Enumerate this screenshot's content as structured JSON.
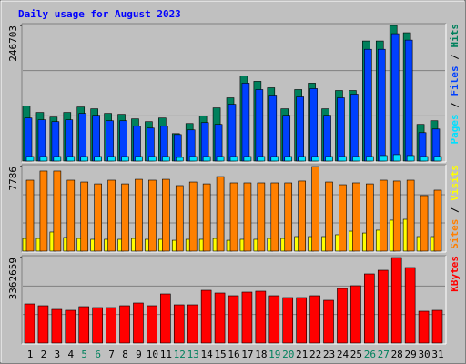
{
  "chart_data": [
    {
      "type": "bar",
      "title": "Daily usage for August 2023",
      "ylim": [
        0,
        246703
      ],
      "yticks": [
        246703
      ],
      "legend_separator": " / ",
      "series": [
        {
          "name": "Pages",
          "color": "#00e0ff",
          "values": [
            8300,
            8300,
            8300,
            8300,
            8300,
            8300,
            8300,
            8300,
            8300,
            8300,
            8300,
            6700,
            8300,
            8300,
            8300,
            8300,
            8300,
            8300,
            8300,
            8300,
            8300,
            8300,
            8300,
            8300,
            8300,
            8300,
            10000,
            11700,
            10000,
            8300,
            8300
          ]
        },
        {
          "name": "Files",
          "color": "#0040ff",
          "values": [
            78300,
            75000,
            71700,
            75000,
            86700,
            83300,
            73300,
            73300,
            63300,
            60000,
            63300,
            48300,
            56700,
            70000,
            66700,
            103300,
            141700,
            130000,
            120000,
            83300,
            116700,
            131700,
            83300,
            115000,
            121700,
            203300,
            203300,
            231700,
            220000,
            51700,
            58300
          ]
        },
        {
          "name": "Hits",
          "color": "#00805c",
          "values": [
            100000,
            88400,
            80000,
            88400,
            98300,
            95000,
            86700,
            85000,
            76700,
            71700,
            78300,
            50000,
            68300,
            81700,
            96700,
            115000,
            155000,
            145000,
            133300,
            95000,
            130000,
            141700,
            95000,
            128300,
            128300,
            218400,
            218400,
            246703,
            233400,
            66700,
            73300
          ]
        }
      ]
    },
    {
      "type": "bar",
      "ylim": [
        0,
        7786
      ],
      "yticks": [
        7786
      ],
      "legend_separator": " / ",
      "series": [
        {
          "name": "Sites",
          "color": "#ff8000",
          "values": [
            6530,
            7370,
            7370,
            6530,
            6360,
            6190,
            6530,
            6190,
            6610,
            6530,
            6610,
            6030,
            6360,
            6190,
            6860,
            6280,
            6280,
            6280,
            6280,
            6280,
            6450,
            7786,
            6360,
            6110,
            6280,
            6190,
            6530,
            6450,
            6530,
            5110,
            5610
          ]
        },
        {
          "name": "Visits",
          "color": "#ffff00",
          "values": [
            1170,
            1170,
            1760,
            1260,
            1170,
            1090,
            1090,
            1090,
            1170,
            1090,
            1090,
            1000,
            1090,
            1090,
            1170,
            1000,
            1090,
            1090,
            1170,
            1170,
            1340,
            1340,
            1340,
            1510,
            1840,
            1670,
            1930,
            2850,
            2930,
            1340,
            1340
          ]
        }
      ]
    },
    {
      "type": "bar",
      "ylim": [
        0,
        3362659
      ],
      "yticks": [
        3362659
      ],
      "categories": [
        "1",
        "2",
        "3",
        "4",
        "5",
        "6",
        "7",
        "8",
        "9",
        "10",
        "11",
        "12",
        "13",
        "14",
        "15",
        "16",
        "17",
        "18",
        "19",
        "20",
        "21",
        "22",
        "23",
        "24",
        "25",
        "26",
        "27",
        "28",
        "29",
        "30",
        "31"
      ],
      "category_colors": [
        "#000000",
        "#000000",
        "#000000",
        "#000000",
        "#00805c",
        "#00805c",
        "#000000",
        "#000000",
        "#000000",
        "#000000",
        "#000000",
        "#00805c",
        "#00805c",
        "#000000",
        "#000000",
        "#000000",
        "#000000",
        "#000000",
        "#00805c",
        "#00805c",
        "#000000",
        "#000000",
        "#000000",
        "#000000",
        "#000000",
        "#00805c",
        "#00805c",
        "#000000",
        "#000000",
        "#000000",
        "#000000"
      ],
      "series": [
        {
          "name": "KBytes",
          "color": "#ff0000",
          "values": [
            1538000,
            1466700,
            1323600,
            1287800,
            1430900,
            1395100,
            1395100,
            1466700,
            1574000,
            1466700,
            1931700,
            1502500,
            1502500,
            2074800,
            1967500,
            1860200,
            2003300,
            2039100,
            1860200,
            1788700,
            1788700,
            1860200,
            1681300,
            2146400,
            2253700,
            2718700,
            2861800,
            3362659,
            2969200,
            1252100,
            1287800
          ]
        }
      ]
    }
  ]
}
